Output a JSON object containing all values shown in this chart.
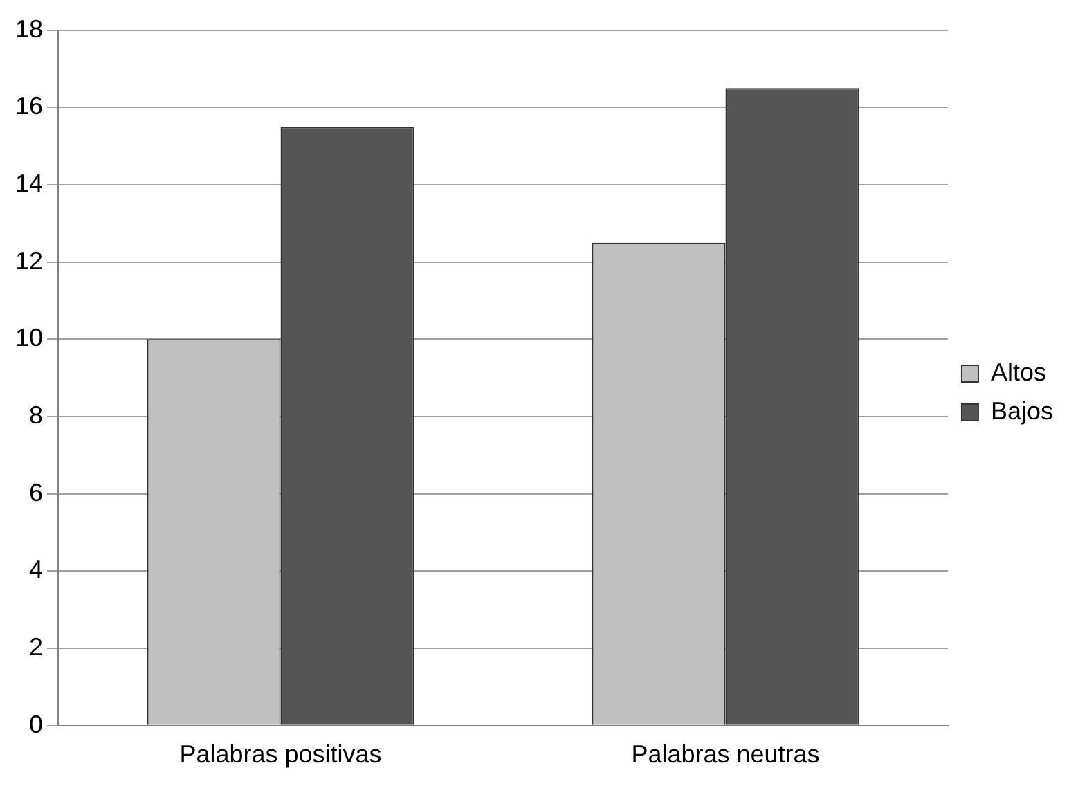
{
  "chart_data": {
    "type": "bar",
    "categories": [
      "Palabras positivas",
      "Palabras neutras"
    ],
    "series": [
      {
        "name": "Altos",
        "color": "#c0c0c0",
        "values": [
          10,
          12.5
        ]
      },
      {
        "name": "Bajos",
        "color": "#555555",
        "values": [
          15.5,
          16.5
        ]
      }
    ],
    "ylim": [
      0,
      18
    ],
    "yticks": [
      0,
      2,
      4,
      6,
      8,
      10,
      12,
      14,
      16,
      18
    ],
    "grid": "y",
    "legend": "right"
  }
}
